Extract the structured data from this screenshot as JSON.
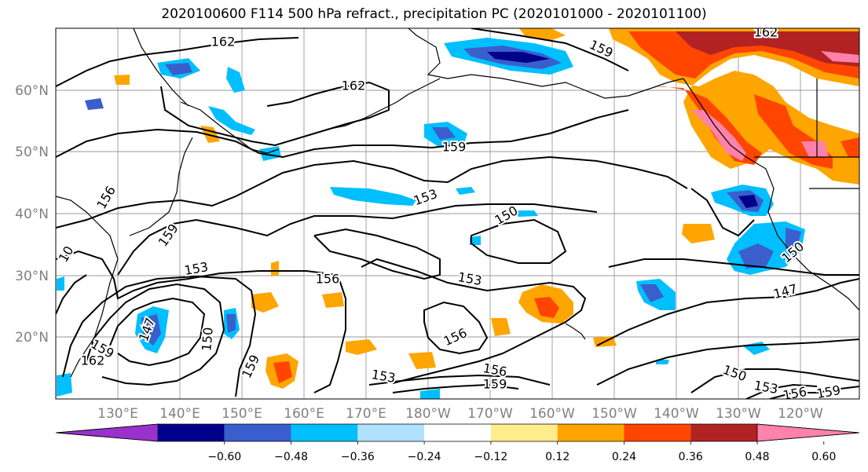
{
  "title": "2020100600 F114 500 hPa refract., precipitation PC (2020101000 - 2020101100)",
  "lat_labels": [
    "60°N",
    "50°N",
    "40°N",
    "30°N",
    "20°N"
  ],
  "lon_labels": [
    "130°E",
    "140°E",
    "150°E",
    "160°E",
    "170°E",
    "180°W",
    "170°W",
    "160°W",
    "150°W",
    "140°W",
    "130°W",
    "120°W"
  ],
  "colorbar": {
    "colors": [
      "#9932CC",
      "#00008B",
      "#3A5FCD",
      "#00BFFF",
      "#B0E2FF",
      "#FFFFFF",
      "#FFEC8B",
      "#FFA500",
      "#FF4500",
      "#B22222",
      "#FF82AB"
    ],
    "tick_labels": [
      "−0.60",
      "−0.48",
      "−0.36",
      "−0.24",
      "−0.12",
      "0.12",
      "0.24",
      "0.36",
      "0.48",
      "0.60"
    ]
  },
  "contour_labels": [
    {
      "text": "162"
    },
    {
      "text": "159"
    },
    {
      "text": "162"
    },
    {
      "text": "162"
    },
    {
      "text": "159"
    },
    {
      "text": "156"
    },
    {
      "text": "159"
    },
    {
      "text": "153"
    },
    {
      "text": "150"
    },
    {
      "text": "153"
    },
    {
      "text": "156"
    },
    {
      "text": "153"
    },
    {
      "text": "147"
    },
    {
      "text": "150"
    },
    {
      "text": "147"
    },
    {
      "text": "150"
    },
    {
      "text": "159"
    },
    {
      "text": "162"
    },
    {
      "text": "159"
    },
    {
      "text": "156"
    },
    {
      "text": "153"
    },
    {
      "text": "156"
    },
    {
      "text": "159"
    },
    {
      "text": "150"
    },
    {
      "text": "153"
    },
    {
      "text": "156"
    },
    {
      "text": "159"
    },
    {
      "text": "10"
    }
  ]
}
